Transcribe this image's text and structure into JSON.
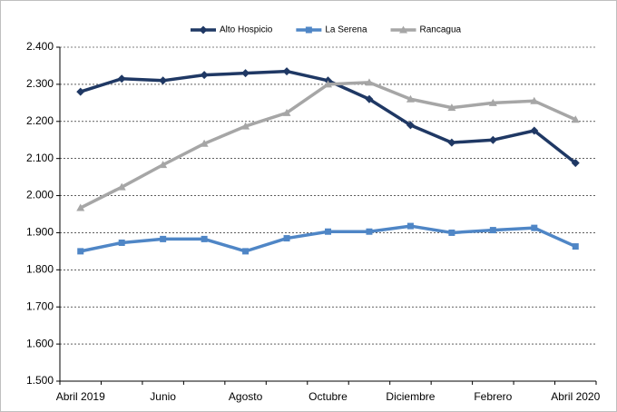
{
  "chart_data": {
    "type": "line",
    "categories": [
      "Abril 2019",
      null,
      "Junio",
      null,
      "Agosto",
      null,
      "Octubre",
      null,
      "Diciembre",
      null,
      "Febrero",
      null,
      "Abril 2020"
    ],
    "series": [
      {
        "name": "Alto Hospicio",
        "color": "#1f3864",
        "marker": "diamond",
        "values": [
          2280,
          2315,
          2310,
          2325,
          2330,
          2335,
          2310,
          2260,
          2190,
          2143,
          2150,
          2175,
          2088
        ]
      },
      {
        "name": "La Serena",
        "color": "#4f86c6",
        "marker": "square",
        "values": [
          1850,
          1873,
          1883,
          1883,
          1850,
          1885,
          1903,
          1903,
          1918,
          1900,
          1907,
          1913,
          1863
        ]
      },
      {
        "name": "Rancagua",
        "color": "#a6a6a6",
        "marker": "triangle",
        "values": [
          1967,
          2023,
          2083,
          2140,
          2187,
          2223,
          2300,
          2305,
          2260,
          2237,
          2250,
          2255,
          2205
        ]
      }
    ],
    "ylim": [
      1500,
      2400
    ],
    "yticks": [
      {
        "value": 1500,
        "label": "1.500"
      },
      {
        "value": 1600,
        "label": "1.600"
      },
      {
        "value": 1700,
        "label": "1.700"
      },
      {
        "value": 1800,
        "label": "1.800"
      },
      {
        "value": 1900,
        "label": "1.900"
      },
      {
        "value": 2000,
        "label": "2.000"
      },
      {
        "value": 2100,
        "label": "2.100"
      },
      {
        "value": 2200,
        "label": "2.200"
      },
      {
        "value": 2300,
        "label": "2.300"
      },
      {
        "value": 2400,
        "label": "2.400"
      }
    ],
    "grid": true,
    "legend": "top"
  }
}
